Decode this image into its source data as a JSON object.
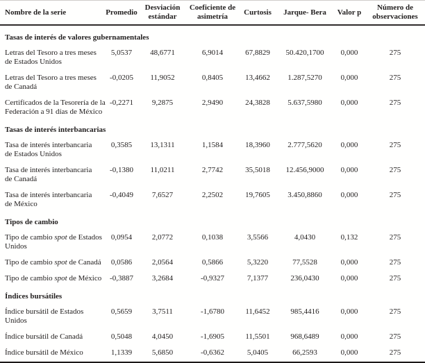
{
  "table": {
    "columns": [
      "Nombre de la serie",
      "Promedio",
      "Desviación estándar",
      "Coeficiente de asimetría",
      "Curtosis",
      "Jarque- Bera",
      "Valor p",
      "Número de observaciones"
    ],
    "sections": [
      {
        "title": "Tasas de interés de valores gubernamentales",
        "rows": [
          {
            "name": "Letras del Tesoro a tres meses\nde Estados Unidos",
            "values": [
              "5,0537",
              "48,6771",
              "6,9014",
              "67,8829",
              "50.420,1700",
              "0,000",
              "275"
            ]
          },
          {
            "name": "Letras del Tesoro a tres meses\nde Canadá",
            "values": [
              "-0,0205",
              "11,9052",
              "0,8405",
              "13,4662",
              "1.287,5270",
              "0,000",
              "275"
            ]
          },
          {
            "name": "Certificados de la Tesorería de la\nFederación a 91 días de México",
            "values": [
              "-0,2271",
              "9,2875",
              "2,9490",
              "24,3828",
              "5.637,5980",
              "0,000",
              "275"
            ]
          }
        ]
      },
      {
        "title": "Tasas de interés interbancarias",
        "rows": [
          {
            "name": "Tasa de interés interbancaria\nde Estados Unidos",
            "values": [
              "0,3585",
              "13,1311",
              "1,1584",
              "18,3960",
              "2.777,5620",
              "0,000",
              "275"
            ]
          },
          {
            "name": "Tasa de interés interbancaria\nde Canadá",
            "values": [
              "-0,1380",
              "11,0211",
              "2,7742",
              "35,5018",
              "12.456,9000",
              "0,000",
              "275"
            ]
          },
          {
            "name": "Tasa de interés interbancaria\nde México",
            "values": [
              "-0,4049",
              "7,6527",
              "2,2502",
              "19,7605",
              "3.450,8860",
              "0,000",
              "275"
            ]
          }
        ]
      },
      {
        "title": "Tipos de cambio",
        "rows": [
          {
            "name": "Tipo de cambio *spot* de Estados\nUnidos",
            "values": [
              "0,0954",
              "2,0772",
              "0,1038",
              "3,5566",
              "4,0430",
              "0,132",
              "275"
            ]
          },
          {
            "name": "Tipo de cambio *spot* de Canadá",
            "values": [
              "0,0586",
              "2,0564",
              "0,5866",
              "5,3220",
              "77,5528",
              "0,000",
              "275"
            ]
          },
          {
            "name": "Tipo de cambio *spot* de México",
            "values": [
              "-0,3887",
              "3,2684",
              "-0,9327",
              "7,1377",
              "236,0430",
              "0,000",
              "275"
            ]
          }
        ]
      },
      {
        "title": "Índices bursátiles",
        "rows": [
          {
            "name": "Índice bursátil de Estados\nUnidos",
            "values": [
              "0,5659",
              "3,7511",
              "-1,6780",
              "11,6452",
              "985,4416",
              "0,000",
              "275"
            ]
          },
          {
            "name": "Índice bursátil de Canadá",
            "values": [
              "0,5048",
              "4,0450",
              "-1,6905",
              "11,5501",
              "968,6489",
              "0,000",
              "275"
            ]
          },
          {
            "name": "Índice bursátil de México",
            "values": [
              "1,1339",
              "5,6850",
              "-0,6362",
              "5,0405",
              "66,2593",
              "0,000",
              "275"
            ]
          }
        ]
      }
    ]
  }
}
